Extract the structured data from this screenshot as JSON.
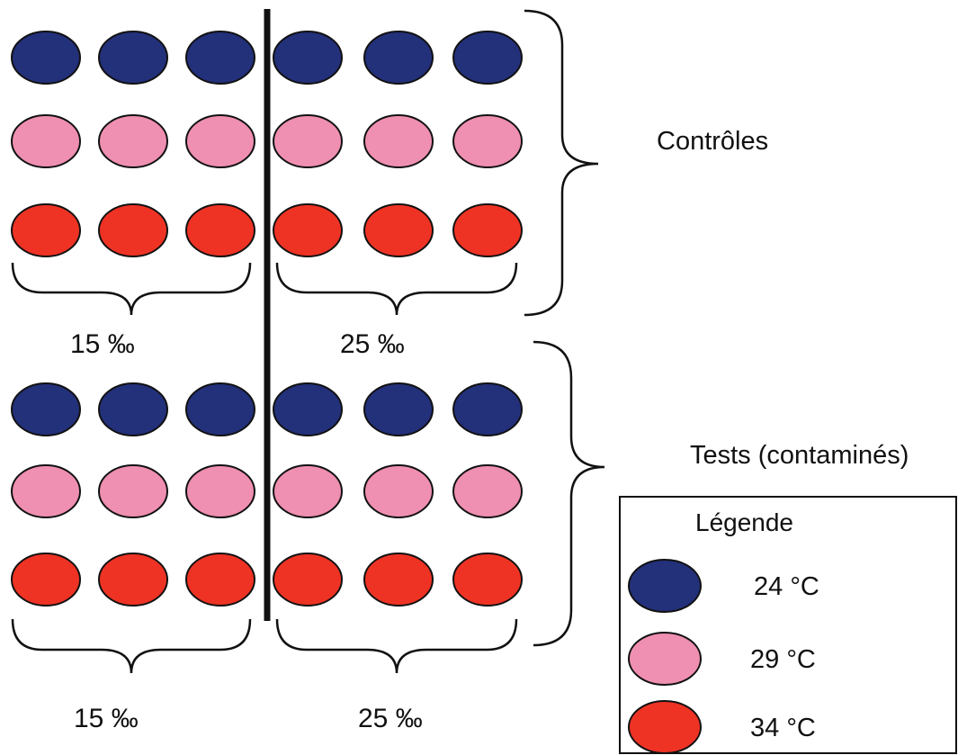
{
  "colors": {
    "blue": "#23307a",
    "pink": "#ef8fb1",
    "red": "#ee3324",
    "outline": "#111111"
  },
  "groups": {
    "controls_label": "Contrôles",
    "tests_label": "Tests (contaminés)"
  },
  "salinity": {
    "top_left": "15 ‰",
    "top_right": "25 ‰",
    "bottom_left": "15 ‰",
    "bottom_right": "25 ‰"
  },
  "legend": {
    "title": "Légende",
    "items": [
      {
        "color": "blue",
        "label": "24 °C"
      },
      {
        "color": "pink",
        "label": "29 °C"
      },
      {
        "color": "red",
        "label": "34 °C"
      }
    ]
  },
  "grid": {
    "rows": [
      [
        "blue",
        "blue",
        "blue",
        "blue",
        "blue",
        "blue"
      ],
      [
        "pink",
        "pink",
        "pink",
        "pink",
        "pink",
        "pink"
      ],
      [
        "red",
        "red",
        "red",
        "red",
        "red",
        "red"
      ],
      [
        "blue",
        "blue",
        "blue",
        "blue",
        "blue",
        "blue"
      ],
      [
        "pink",
        "pink",
        "pink",
        "pink",
        "pink",
        "pink"
      ],
      [
        "red",
        "red",
        "red",
        "red",
        "red",
        "red"
      ]
    ]
  }
}
